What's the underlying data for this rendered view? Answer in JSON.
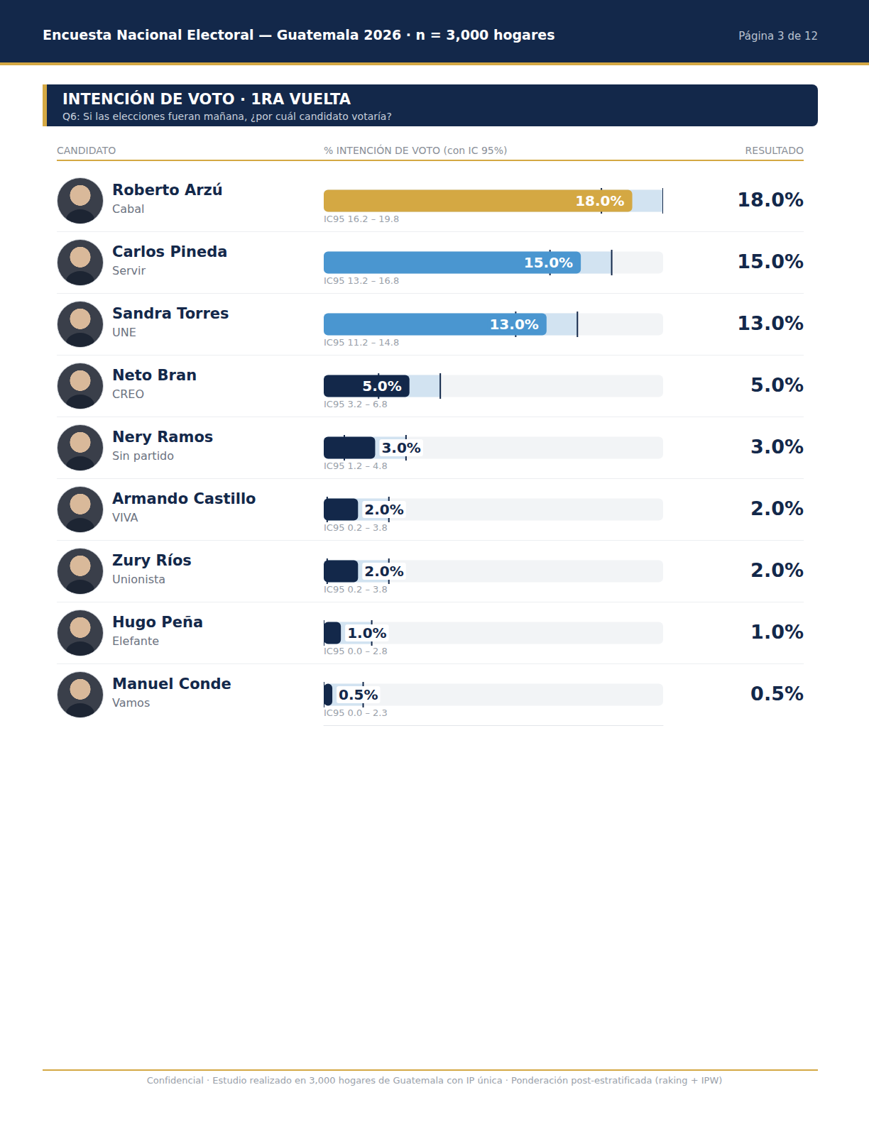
{
  "page": {
    "header_title": "Encuesta Nacional Electoral — Guatemala 2026  ·  n = 3,000 hogares",
    "page_number": "Página 3 de 12",
    "column_heads": [
      "CANDIDATO",
      "% INTENCIÓN DE VOTO (con IC 95%)",
      "RESULTADO"
    ],
    "footer": "Confidencial  ·  Estudio realizado en 3,000 hogares de Guatemala con IP única  ·  Ponderación post-estratificada (raking + IPW)"
  },
  "chart_data": {
    "type": "bar",
    "orientation": "horizontal",
    "title": "INTENCIÓN DE VOTO · 1RA VUELTA",
    "subtitle": "Q6: Si las elecciones fueran mañana, ¿por cuál candidato votaría?",
    "categories": [
      "Roberto Arzú",
      "Carlos Pineda",
      "Sandra Torres",
      "Neto Bran",
      "Nery Ramos",
      "Armando Castillo",
      "Zury Ríos",
      "Hugo Peña",
      "Manuel Conde"
    ],
    "parties": [
      "Cabal",
      "Servir",
      "UNE",
      "CREO",
      "Sin partido",
      "VIVA",
      "Unionista",
      "Elefante",
      "Vamos"
    ],
    "values": [
      18.0,
      15.0,
      13.0,
      5.0,
      3.0,
      2.0,
      2.0,
      1.0,
      0.5
    ],
    "value_labels": [
      "18.0%",
      "15.0%",
      "13.0%",
      "5.0%",
      "3.0%",
      "2.0%",
      "2.0%",
      "1.0%",
      "0.5%"
    ],
    "colors": [
      "#d4a843",
      "#4a96d0",
      "#4a96d0",
      "#13284a",
      "#13284a",
      "#13284a",
      "#13284a",
      "#13284a",
      "#13284a"
    ],
    "ci_low": [
      16.2,
      13.2,
      11.2,
      3.2,
      1.2,
      0.2,
      0.2,
      0.0,
      0.0
    ],
    "ci_high": [
      19.8,
      16.8,
      14.8,
      6.8,
      4.8,
      3.8,
      3.8,
      2.8,
      2.3
    ],
    "ci_labels": [
      "IC95  16.2 – 19.8",
      "IC95  13.2 – 16.8",
      "IC95  11.2 – 14.8",
      "IC95  3.2 – 6.8",
      "IC95  1.2 – 4.8",
      "IC95  0.2 – 3.8",
      "IC95  0.2 – 3.8",
      "IC95  0.0 – 2.8",
      "IC95  0.0 – 2.3"
    ],
    "xlim": [
      0,
      19.8
    ],
    "tick_labels": false,
    "data_labels": true,
    "grid": false
  }
}
